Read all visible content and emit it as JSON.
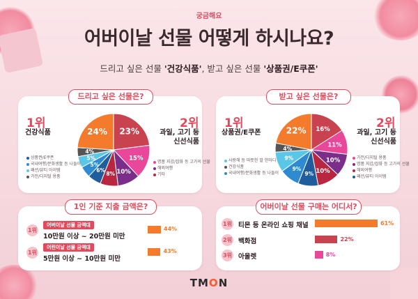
{
  "header": {
    "eyebrow": "궁금해요",
    "title": "어버이날 선물 어떻게 하시나요?",
    "subtitle_a": "드리고 싶은 선물 ",
    "subtitle_b": "'건강식품'",
    "subtitle_c": ", 받고 싶은 선물 ",
    "subtitle_d": "'상품권/E쿠폰'"
  },
  "chart_data": [
    {
      "type": "pie",
      "title": "드리고 싶은 선물은?",
      "rank1": {
        "rank": "1위",
        "label": "건강식품"
      },
      "rank2": {
        "rank": "2위",
        "label_line1": "과일, 고기 등",
        "label_line2": "신선식품"
      },
      "slices": [
        {
          "label": "과일, 고기 등 신선식품",
          "value": 23,
          "text": "23%"
        },
        {
          "label": "명품 지갑/잡화 등 고가의 선물",
          "value": 15,
          "text": "15%"
        },
        {
          "label": "해외여행",
          "value": 10,
          "text": "10%"
        },
        {
          "label": "기타",
          "value": 8,
          "text": "8%"
        },
        {
          "label": "상품권/E쿠폰",
          "value": 6,
          "text": "6%"
        },
        {
          "label": "국내여행/문화생활 등 나들이",
          "value": 5,
          "text": "5%"
        },
        {
          "label": "패션/뷰티 아이템",
          "value": 5,
          "text": "5%"
        },
        {
          "label": "가전/디지털 용품",
          "value": 4,
          "text": "4%"
        },
        {
          "label": "건강식품",
          "value": 24,
          "text": "24%"
        }
      ],
      "colors": [
        "#c9424f",
        "#e8479a",
        "#7a2e8a",
        "#b8273f",
        "#1f5d9c",
        "#2e8bd2",
        "#5bc7e8",
        "#555555",
        "#f47a2c"
      ],
      "legend_left": [
        "상품권/E쿠폰",
        "국내여행/문화생활 등 나들이",
        "패션/뷰티 아이템",
        "가전/디지털 용품"
      ],
      "legend_right": [
        "명품 지갑/잡화 등 고가의 선물",
        "해외여행",
        "기타"
      ]
    },
    {
      "type": "pie",
      "title": "받고 싶은 선물은?",
      "rank1": {
        "rank": "1위",
        "label": "상품권/E쿠폰"
      },
      "rank2": {
        "rank": "2위",
        "label_line1": "과일, 고기 등",
        "label_line2": "신선식품"
      },
      "slices": [
        {
          "label": "과일, 고기 등 신선식품",
          "value": 16,
          "text": "16%"
        },
        {
          "label": "가전/디지털 용품",
          "value": 11,
          "text": "11%"
        },
        {
          "label": "명품 지갑/잡화 등 고가의 선물",
          "value": 10,
          "text": "10%"
        },
        {
          "label": "해외여행",
          "value": 10,
          "text": "10%"
        },
        {
          "label": "패션/뷰티 아이템",
          "value": 9,
          "text": "9%"
        },
        {
          "label": "국내여행/문화생활 등 나들이",
          "value": 9,
          "text": "9%"
        },
        {
          "label": "사랑해 등 따뜻한 말 한마디",
          "value": 9,
          "text": "9%"
        },
        {
          "label": "건강식품",
          "value": 4,
          "text": "4%"
        },
        {
          "label": "상품권/E쿠폰",
          "value": 22,
          "text": "22%"
        }
      ],
      "colors": [
        "#c9424f",
        "#e8479a",
        "#7a2e8a",
        "#b8273f",
        "#1f5d9c",
        "#2e8bd2",
        "#5bc7e8",
        "#555555",
        "#f47a2c"
      ],
      "legend_left": [
        "사랑해 등 따뜻한 말 한마디",
        "건강식품",
        "국내여행/문화생활 등 나들이"
      ],
      "legend_right": [
        "가전/디지털 용품",
        "명품 지갑/잡화 등 고가의 선물",
        "해외여행",
        "패션/뷰티 아이템"
      ]
    },
    {
      "type": "bar",
      "title": "1인 기준 지출 금액은?",
      "rows": [
        {
          "rank": "1위",
          "tag": "어버이날 선물 금액대",
          "label": "10만원 이상 ~ 20만원 미만",
          "value": 44,
          "text": "44%"
        },
        {
          "rank": "1위",
          "tag": "어린이날 선물 금액대",
          "label": "5만원 이상 ~ 10만원 미만",
          "value": 43,
          "text": "43%"
        }
      ],
      "color": "#f47a2c",
      "xlim": [
        0,
        100
      ]
    },
    {
      "type": "bar",
      "title": "어버이날 선물 구매는 어디서?",
      "rows": [
        {
          "rank": "1위",
          "label": "티몬 등 온라인 쇼핑 채널",
          "value": 61,
          "text": "61%",
          "color": "#f47a2c"
        },
        {
          "rank": "2위",
          "label": "백화점",
          "value": 22,
          "text": "22%",
          "color": "#c9424f"
        },
        {
          "rank": "3위",
          "label": "아울렛",
          "value": 8,
          "text": "8%",
          "color": "#e8479a"
        }
      ],
      "xlim": [
        0,
        100
      ]
    }
  ],
  "logo": {
    "a": "TM",
    "b": "O",
    "c": "N"
  }
}
